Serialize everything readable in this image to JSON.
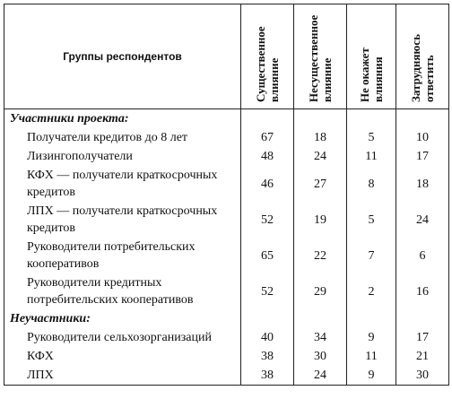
{
  "table": {
    "header": [
      "Группы респондентов",
      "Существенное влияние",
      "Несущественное влияние",
      "Не окажет влияния",
      "Затрудняюсь ответить"
    ],
    "sections": [
      {
        "title": "Участники проекта:",
        "rows": [
          {
            "label": "Получатели кредитов до 8 лет",
            "values": [
              67,
              18,
              5,
              10
            ]
          },
          {
            "label": "Лизингополучатели",
            "values": [
              48,
              24,
              11,
              17
            ]
          },
          {
            "label": "КФХ — получатели краткосрочных кредитов",
            "values": [
              46,
              27,
              8,
              18
            ]
          },
          {
            "label": "ЛПХ — получатели краткосрочных кредитов",
            "values": [
              52,
              19,
              5,
              24
            ]
          },
          {
            "label": "Руководители потребительских кооперативов",
            "values": [
              65,
              22,
              7,
              6
            ]
          },
          {
            "label": "Руководители кредитных потребительских кооперативов",
            "values": [
              52,
              29,
              2,
              16
            ]
          }
        ]
      },
      {
        "title": "Неучастники:",
        "rows": [
          {
            "label": "Руководители сельхозорганизаций",
            "values": [
              40,
              34,
              9,
              17
            ]
          },
          {
            "label": "КФХ",
            "values": [
              38,
              30,
              11,
              21
            ]
          },
          {
            "label": "ЛПХ",
            "values": [
              38,
              24,
              9,
              30
            ]
          }
        ]
      }
    ]
  }
}
